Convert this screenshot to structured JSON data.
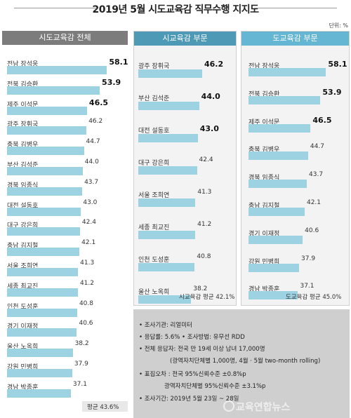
{
  "title": "2019년 5월 시도교육감 직무수행 지지도",
  "unit": "단위: %",
  "colors": {
    "bar": "#9dd2e3",
    "panel_total": "#7c7c7c",
    "panel_city": "#4e99b5",
    "panel_province": "#64b6d2",
    "notes_bg": "#cfcfcf"
  },
  "chart_data": [
    {
      "type": "bar",
      "title": "시도교육감 전체",
      "categories": [
        "전남 장석웅",
        "전북 김승환",
        "제주 이석문",
        "광주 장휘국",
        "충북 김병우",
        "부산 김석준",
        "경북 임종식",
        "대전 설동호",
        "대구 강은희",
        "충남 김지철",
        "서울 조희연",
        "세종 최교진",
        "인천 도성훈",
        "경기 이재정",
        "울산 노옥희",
        "강원 민병희",
        "경남 박종훈"
      ],
      "values": [
        58.1,
        53.9,
        46.5,
        46.2,
        44.7,
        44.0,
        43.7,
        43.0,
        42.4,
        42.1,
        41.3,
        41.2,
        40.8,
        40.6,
        38.2,
        37.9,
        37.1
      ],
      "value_labels": [
        "58.1",
        "53.9",
        "46.5",
        "46.2",
        "44.7",
        "44.0",
        "43.7",
        "43.0",
        "42.4",
        "42.1",
        "41.3",
        "41.2",
        "40.8",
        "40.6",
        "38.2",
        "37.9",
        "37.1"
      ],
      "average": "평균 43.6%"
    },
    {
      "type": "bar",
      "title": "시교육감 부문",
      "categories": [
        "광주 장휘국",
        "부산 김석준",
        "대전 설동호",
        "대구 강은희",
        "서울 조희연",
        "세종 최교진",
        "인천 도성훈",
        "울산 노옥희"
      ],
      "values": [
        46.2,
        44.0,
        43.0,
        42.4,
        41.3,
        41.2,
        40.8,
        38.2
      ],
      "value_labels": [
        "46.2",
        "44.0",
        "43.0",
        "42.4",
        "41.3",
        "41.2",
        "40.8",
        "38.2"
      ],
      "average": "시교육감 평균 42.1%"
    },
    {
      "type": "bar",
      "title": "도교육감 부문",
      "categories": [
        "전남 장석웅",
        "전북 김승환",
        "제주 이석문",
        "충북 김병우",
        "경북 임종식",
        "충남 김지철",
        "경기 이재정",
        "강원 민병희",
        "경남 박종훈"
      ],
      "values": [
        58.1,
        53.9,
        46.5,
        44.7,
        43.7,
        42.1,
        40.6,
        37.9,
        37.1
      ],
      "value_labels": [
        "58.1",
        "53.9",
        "46.5",
        "44.7",
        "43.7",
        "42.1",
        "40.6",
        "37.9",
        "37.1"
      ],
      "average": "도교육감 평균 45.0%"
    }
  ],
  "notes": [
    "• 조사기관: 리얼미터",
    "• 응답률: 5.6%  • 조사방법: 유무선 RDD",
    "• 전체 응답자: 전국 만 19세 이상 남녀 17,000명",
    "(광역자치단체별 1,000명, 4월 · 5월 two-month rolling)",
    "• 표집오차 : 전국 95%신뢰수준 ±0.8%p",
    "광역자치단체별 95%신뢰수준 ±3.1%p",
    "• 조사기간: 2019년 5월 23일 ~ 28일"
  ],
  "watermark": "교육연합뉴스"
}
